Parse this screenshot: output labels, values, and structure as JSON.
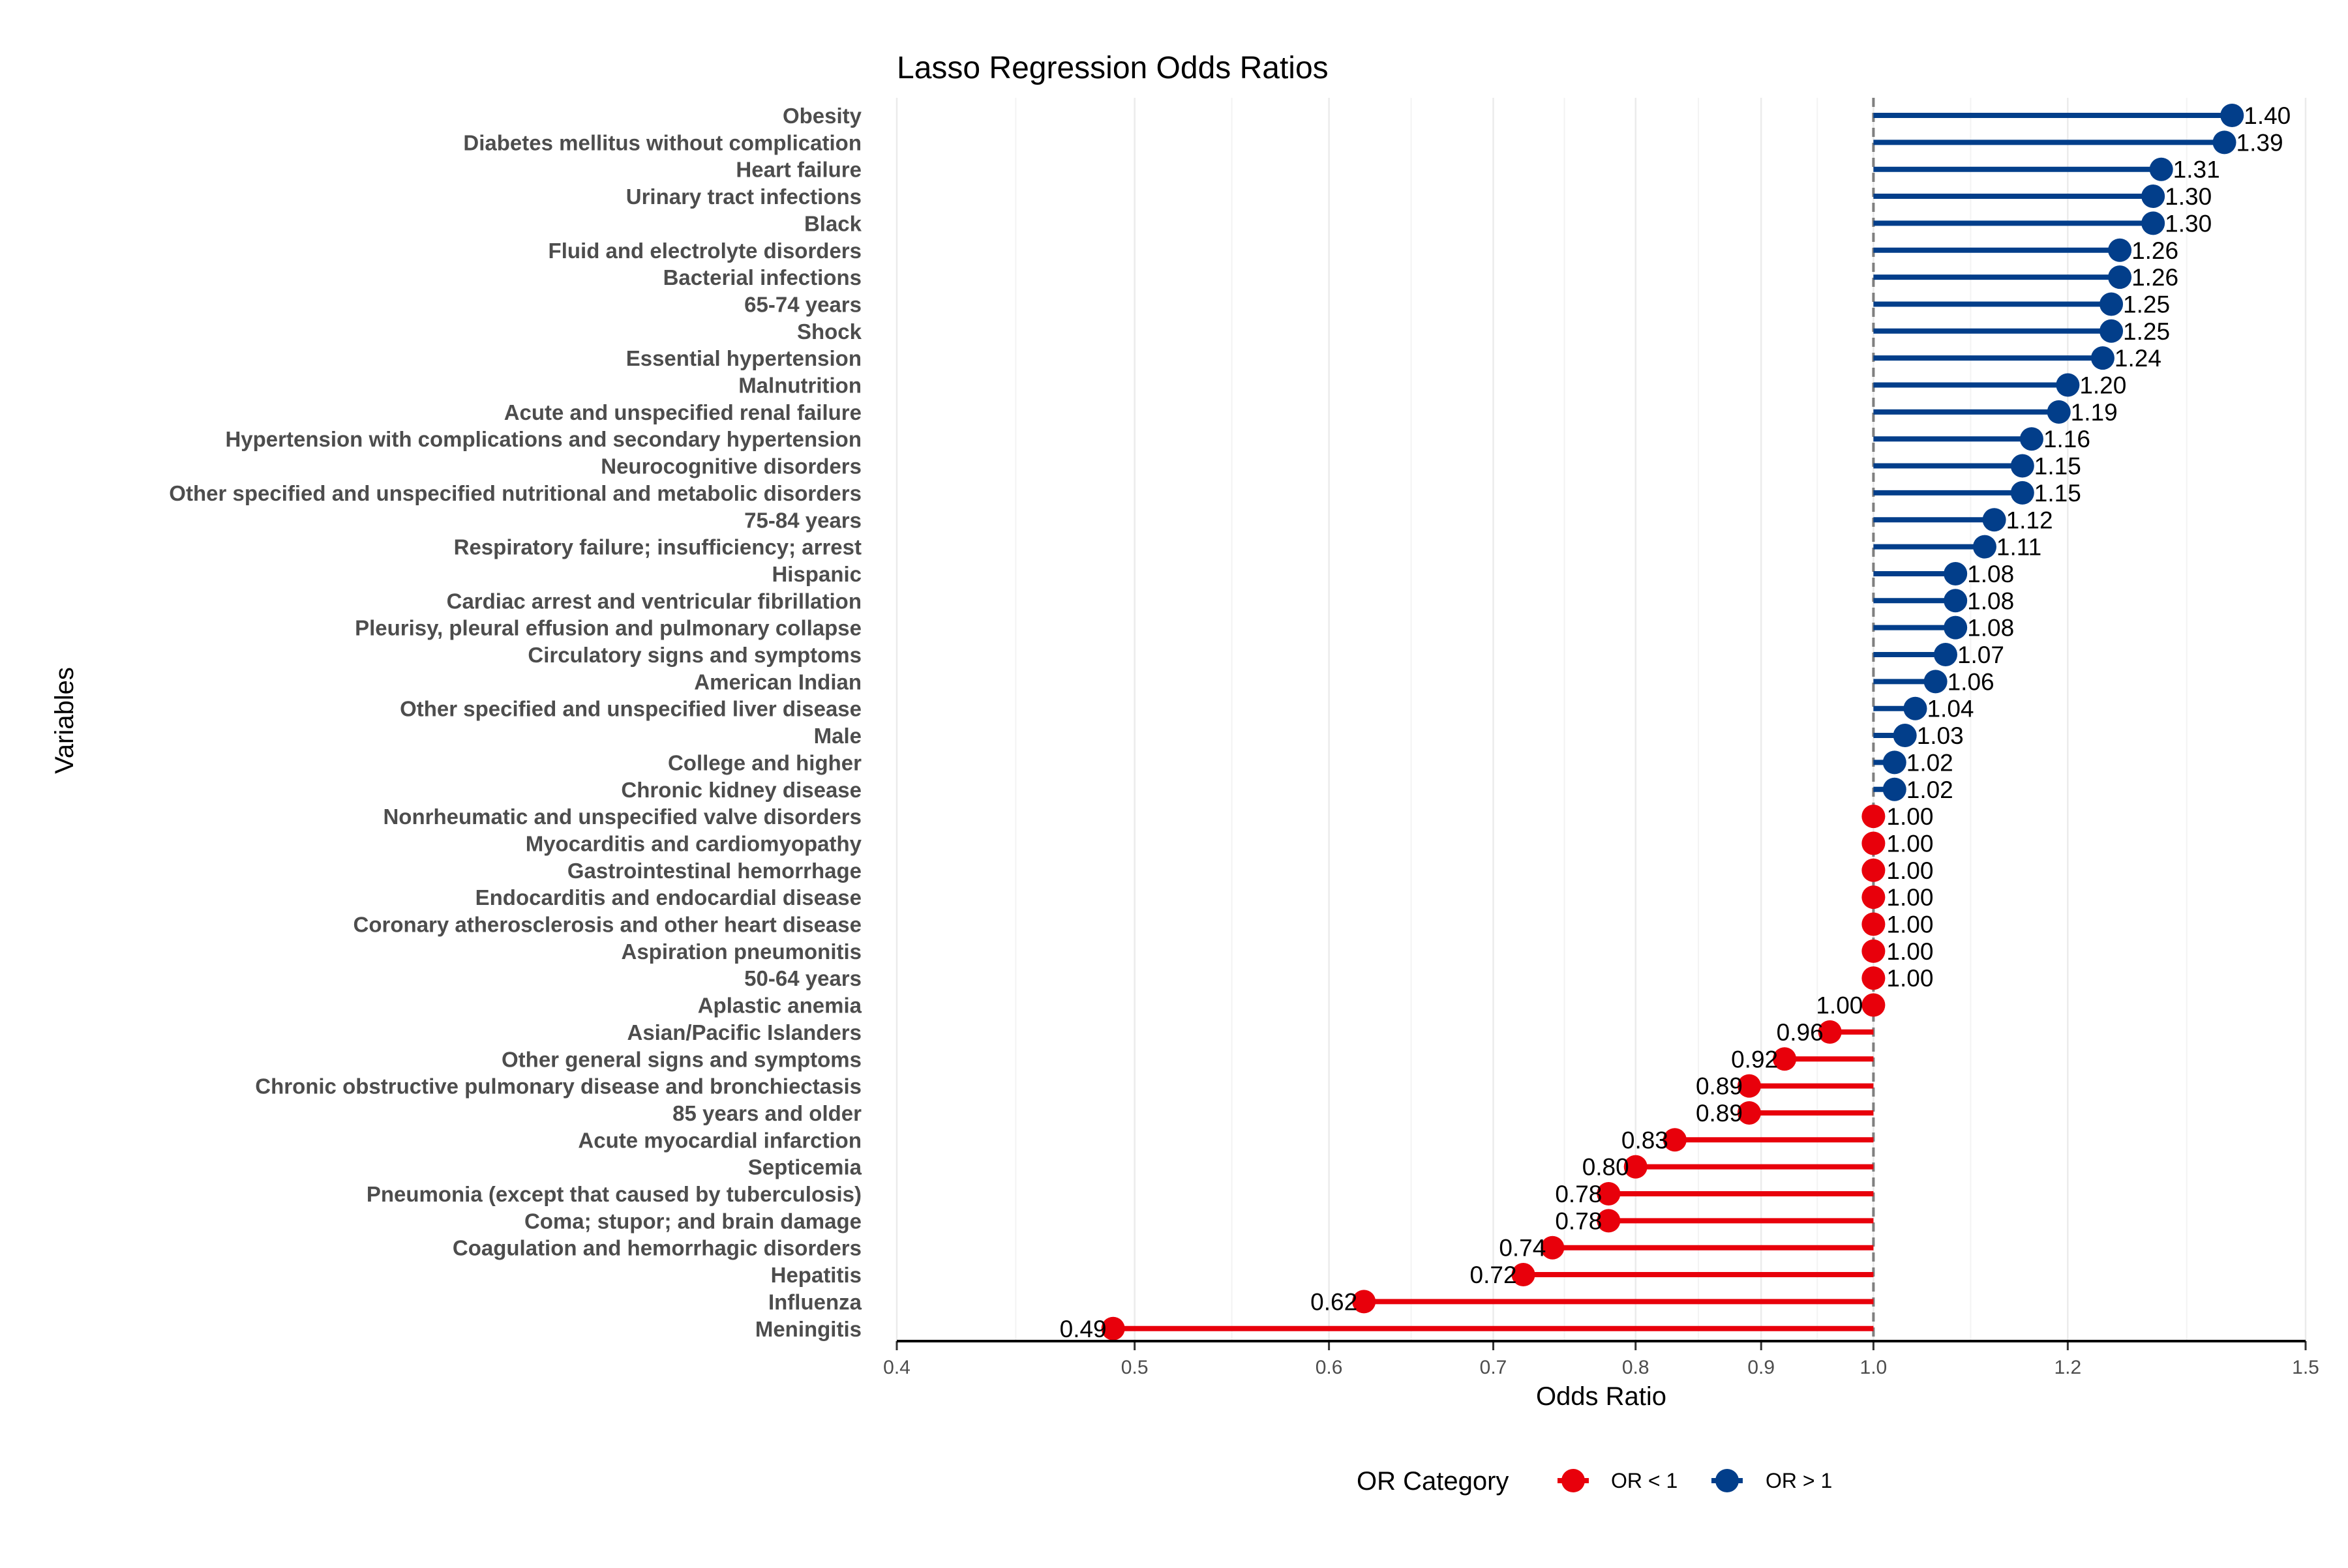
{
  "chart_data": {
    "type": "lollipop",
    "title": "Lasso Regression Odds Ratios",
    "xlabel": "Odds Ratio",
    "ylabel": "Variables",
    "x_scale": "log",
    "xlim": [
      0.4,
      1.5
    ],
    "x_ticks": [
      0.4,
      0.5,
      0.6,
      0.7,
      0.8,
      0.9,
      1.0,
      1.2,
      1.5
    ],
    "x_tick_labels": [
      "0.4",
      "0.5",
      "0.6",
      "0.7",
      "0.8",
      "0.9",
      "1.0",
      "1.2",
      "1.5"
    ],
    "reference_line": 1.0,
    "grid": true,
    "legend": {
      "title": "OR Category",
      "position": "bottom",
      "entries": [
        {
          "name": "OR < 1",
          "color": "#e8000b"
        },
        {
          "name": "OR > 1",
          "color": "#023e8a"
        }
      ]
    },
    "colors": {
      "below": "#e8000b",
      "above": "#023e8a"
    },
    "categories": [
      "Obesity",
      "Diabetes mellitus without complication",
      "Heart failure",
      "Urinary tract infections",
      "Black",
      "Fluid and electrolyte disorders",
      "Bacterial infections",
      "65-74 years",
      "Shock",
      "Essential hypertension",
      "Malnutrition",
      "Acute and unspecified renal failure",
      "Hypertension with complications and secondary hypertension",
      "Neurocognitive disorders",
      "Other specified and unspecified nutritional and metabolic disorders",
      "75-84 years",
      "Respiratory failure; insufficiency; arrest",
      "Hispanic",
      "Cardiac arrest and ventricular fibrillation",
      "Pleurisy, pleural effusion and pulmonary collapse",
      "Circulatory signs and symptoms",
      "American Indian",
      "Other specified and unspecified liver disease",
      "Male",
      "College and higher",
      "Chronic kidney disease",
      "Nonrheumatic and unspecified valve disorders",
      "Myocarditis and cardiomyopathy",
      "Gastrointestinal hemorrhage",
      "Endocarditis and endocardial disease",
      "Coronary atherosclerosis and other heart disease",
      "Aspiration pneumonitis",
      "50-64 years",
      "Aplastic anemia",
      "Asian/Pacific Islanders",
      "Other general signs and symptoms",
      "Chronic obstructive pulmonary disease and bronchiectasis",
      "85 years and older",
      "Acute myocardial infarction",
      "Septicemia",
      "Pneumonia (except that caused by tuberculosis)",
      "Coma; stupor; and brain damage",
      "Coagulation and hemorrhagic disorders",
      "Hepatitis",
      "Influenza",
      "Meningitis"
    ],
    "values": [
      1.4,
      1.39,
      1.31,
      1.3,
      1.3,
      1.26,
      1.26,
      1.25,
      1.25,
      1.24,
      1.2,
      1.19,
      1.16,
      1.15,
      1.15,
      1.12,
      1.11,
      1.08,
      1.08,
      1.08,
      1.07,
      1.06,
      1.04,
      1.03,
      1.02,
      1.02,
      1.0,
      1.0,
      1.0,
      1.0,
      1.0,
      1.0,
      1.0,
      1.0,
      0.96,
      0.92,
      0.89,
      0.89,
      0.83,
      0.8,
      0.78,
      0.78,
      0.74,
      0.72,
      0.62,
      0.49
    ],
    "value_labels": [
      "1.40",
      "1.39",
      "1.31",
      "1.30",
      "1.30",
      "1.26",
      "1.26",
      "1.25",
      "1.25",
      "1.24",
      "1.20",
      "1.19",
      "1.16",
      "1.15",
      "1.15",
      "1.12",
      "1.11",
      "1.08",
      "1.08",
      "1.08",
      "1.07",
      "1.06",
      "1.04",
      "1.03",
      "1.02",
      "1.02",
      "1.00",
      "1.00",
      "1.00",
      "1.00",
      "1.00",
      "1.00",
      "1.00",
      "1.00",
      "0.96",
      "0.92",
      "0.89",
      "0.89",
      "0.83",
      "0.80",
      "0.78",
      "0.78",
      "0.74",
      "0.72",
      "0.62",
      "0.49"
    ],
    "category_group": [
      "above",
      "above",
      "above",
      "above",
      "above",
      "above",
      "above",
      "above",
      "above",
      "above",
      "above",
      "above",
      "above",
      "above",
      "above",
      "above",
      "above",
      "above",
      "above",
      "above",
      "above",
      "above",
      "above",
      "above",
      "above",
      "above",
      "below",
      "below",
      "below",
      "below",
      "below",
      "below",
      "below",
      "below",
      "below",
      "below",
      "below",
      "below",
      "below",
      "below",
      "below",
      "below",
      "below",
      "below",
      "below",
      "below"
    ]
  }
}
